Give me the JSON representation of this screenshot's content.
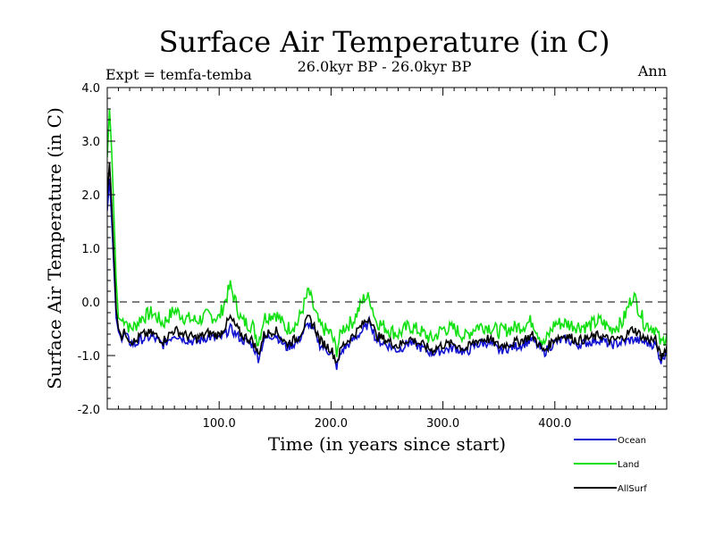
{
  "chart_data": {
    "type": "line",
    "title": "Surface Air Temperature (in C)",
    "subtitle": "26.0kyr BP - 26.0kyr BP",
    "left_annotation": "Expt = temfa-temba",
    "right_annotation": "Ann",
    "xlabel": "Time (in years since start)",
    "ylabel": "Surface Air Temperature (in C)",
    "xlim": [
      0,
      500
    ],
    "ylim": [
      -2.0,
      4.0
    ],
    "x_ticks": [
      100,
      200,
      300,
      400
    ],
    "x_tick_labels": [
      "100.0",
      "200.0",
      "300.0",
      "400.0"
    ],
    "y_ticks": [
      -2,
      -1,
      0,
      1,
      2,
      3,
      4
    ],
    "y_tick_labels": [
      "-2.0",
      "-1.0",
      "0.0",
      "1.0",
      "2.0",
      "3.0",
      "4.0"
    ],
    "reference_line": {
      "y": 0.0,
      "style": "dashed"
    },
    "series": [
      {
        "name": "Ocean",
        "color": "#1010d0",
        "x": [
          0,
          2,
          4,
          6,
          8,
          10,
          13,
          16,
          20,
          25,
          30,
          40,
          50,
          60,
          70,
          80,
          90,
          100,
          110,
          120,
          130,
          135,
          140,
          150,
          160,
          170,
          180,
          185,
          190,
          200,
          205,
          210,
          220,
          230,
          235,
          240,
          250,
          260,
          270,
          280,
          290,
          300,
          310,
          320,
          330,
          340,
          350,
          360,
          370,
          380,
          390,
          400,
          410,
          420,
          430,
          440,
          450,
          460,
          470,
          480,
          490,
          495,
          500
        ],
        "values": [
          1.7,
          2.3,
          1.5,
          0.6,
          -0.3,
          -0.55,
          -0.7,
          -0.6,
          -0.75,
          -0.8,
          -0.7,
          -0.65,
          -0.8,
          -0.6,
          -0.7,
          -0.75,
          -0.65,
          -0.7,
          -0.5,
          -0.7,
          -0.8,
          -1.05,
          -0.7,
          -0.6,
          -0.85,
          -0.75,
          -0.4,
          -0.55,
          -0.8,
          -0.95,
          -1.2,
          -0.9,
          -0.7,
          -0.5,
          -0.35,
          -0.7,
          -0.8,
          -0.9,
          -0.75,
          -0.85,
          -0.95,
          -0.9,
          -0.85,
          -0.95,
          -0.8,
          -0.75,
          -0.9,
          -0.85,
          -0.8,
          -0.7,
          -0.95,
          -0.75,
          -0.7,
          -0.8,
          -0.75,
          -0.7,
          -0.8,
          -0.75,
          -0.7,
          -0.75,
          -0.8,
          -1.1,
          -0.9
        ]
      },
      {
        "name": "Land",
        "color": "#10e010",
        "x": [
          0,
          2,
          4,
          6,
          8,
          10,
          13,
          16,
          20,
          25,
          30,
          40,
          50,
          60,
          70,
          80,
          90,
          100,
          110,
          120,
          130,
          135,
          140,
          150,
          160,
          170,
          180,
          185,
          190,
          200,
          205,
          210,
          220,
          230,
          235,
          240,
          250,
          260,
          270,
          280,
          290,
          300,
          310,
          320,
          330,
          340,
          350,
          360,
          370,
          380,
          390,
          400,
          410,
          420,
          430,
          440,
          450,
          460,
          470,
          480,
          490,
          495,
          500
        ],
        "values": [
          2.7,
          3.6,
          2.8,
          1.6,
          0.4,
          -0.3,
          -0.35,
          -0.3,
          -0.5,
          -0.45,
          -0.3,
          -0.2,
          -0.4,
          -0.15,
          -0.3,
          -0.35,
          -0.25,
          -0.3,
          0.3,
          -0.35,
          -0.45,
          -0.75,
          -0.3,
          -0.2,
          -0.5,
          -0.4,
          0.2,
          -0.15,
          -0.45,
          -0.6,
          -0.9,
          -0.5,
          -0.35,
          0.1,
          0.05,
          -0.35,
          -0.5,
          -0.6,
          -0.45,
          -0.55,
          -0.7,
          -0.5,
          -0.5,
          -0.65,
          -0.45,
          -0.45,
          -0.55,
          -0.5,
          -0.45,
          -0.35,
          -0.8,
          -0.4,
          -0.4,
          -0.45,
          -0.45,
          -0.35,
          -0.5,
          -0.4,
          0.15,
          -0.4,
          -0.5,
          -0.8,
          -0.6
        ]
      },
      {
        "name": "AllSurf",
        "color": "#000000",
        "x": [
          0,
          2,
          4,
          6,
          8,
          10,
          13,
          16,
          20,
          25,
          30,
          40,
          50,
          60,
          70,
          80,
          90,
          100,
          110,
          120,
          130,
          135,
          140,
          150,
          160,
          170,
          180,
          185,
          190,
          200,
          205,
          210,
          220,
          230,
          235,
          240,
          250,
          260,
          270,
          280,
          290,
          300,
          310,
          320,
          330,
          340,
          350,
          360,
          370,
          380,
          390,
          400,
          410,
          420,
          430,
          440,
          450,
          460,
          470,
          480,
          490,
          495,
          500
        ],
        "values": [
          2.0,
          2.6,
          1.8,
          0.8,
          -0.15,
          -0.5,
          -0.65,
          -0.55,
          -0.7,
          -0.75,
          -0.62,
          -0.58,
          -0.72,
          -0.52,
          -0.62,
          -0.68,
          -0.58,
          -0.62,
          -0.3,
          -0.62,
          -0.72,
          -0.98,
          -0.62,
          -0.52,
          -0.78,
          -0.68,
          -0.3,
          -0.45,
          -0.72,
          -0.88,
          -1.12,
          -0.82,
          -0.62,
          -0.38,
          -0.28,
          -0.62,
          -0.72,
          -0.82,
          -0.68,
          -0.78,
          -0.9,
          -0.8,
          -0.78,
          -0.88,
          -0.72,
          -0.68,
          -0.82,
          -0.78,
          -0.72,
          -0.62,
          -0.92,
          -0.68,
          -0.62,
          -0.72,
          -0.68,
          -0.62,
          -0.72,
          -0.68,
          -0.5,
          -0.68,
          -0.72,
          -1.05,
          -0.82
        ]
      }
    ]
  }
}
